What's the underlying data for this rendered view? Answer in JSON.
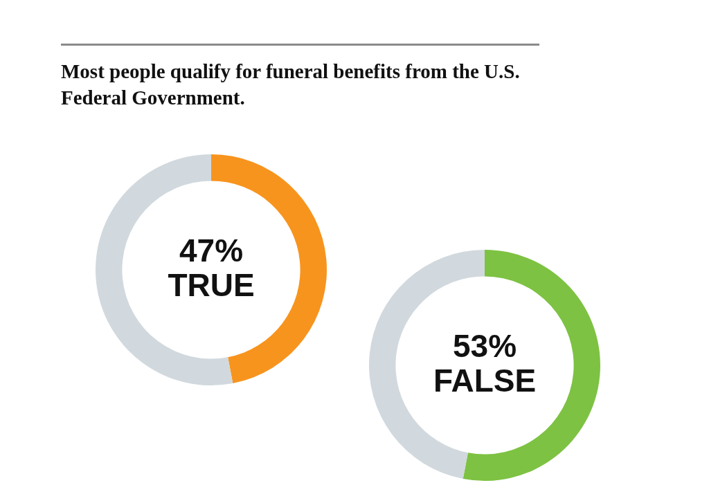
{
  "chart_data": [
    {
      "type": "donut",
      "title": "Most people qualify for funeral benefits from the U.S. Federal Government.",
      "categories": [
        "TRUE",
        null
      ],
      "values": [
        47,
        53
      ],
      "colors": [
        "#f7941d",
        "#d1d9de"
      ],
      "value_labels": [
        "47%",
        null
      ]
    },
    {
      "type": "donut",
      "categories": [
        "FALSE",
        null
      ],
      "values": [
        53,
        47
      ],
      "colors": [
        "#7dc242",
        "#d1d9de"
      ],
      "value_labels": [
        "53%",
        null
      ]
    }
  ]
}
